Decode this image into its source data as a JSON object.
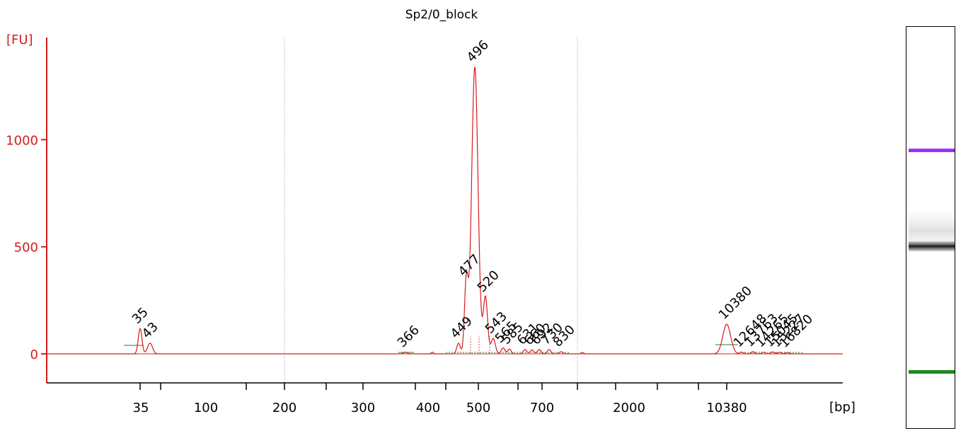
{
  "chart_data": {
    "type": "line",
    "title": "Sp2/0_block",
    "ylabel": "[FU]",
    "xlabel": "[bp]",
    "ylim": [
      -130,
      1480
    ],
    "y_ticks": [
      0,
      500,
      1000
    ],
    "y_tick_labels": [
      "0",
      "500",
      "1000"
    ],
    "x_ticks": [
      "35",
      "100",
      "200",
      "300",
      "400",
      "500",
      "700",
      "2000",
      "10380"
    ],
    "grid": false,
    "colors": {
      "trace": "#d81b1b",
      "axis": "#d81b1b",
      "lower_marker": "#1e8a1e",
      "upper_marker": "#9b30ff",
      "sample": "#000000",
      "reference_lines": "#7777aa"
    },
    "peaks": [
      {
        "label": "35",
        "fu": 118,
        "kind": "lower_marker"
      },
      {
        "label": "43",
        "fu": 50
      },
      {
        "label": "366",
        "fu": 8
      },
      {
        "label": "449",
        "fu": 50
      },
      {
        "label": "477",
        "fu": 340
      },
      {
        "label": "496",
        "fu": 1340
      },
      {
        "label": "520",
        "fu": 265
      },
      {
        "label": "543",
        "fu": 72
      },
      {
        "label": "565",
        "fu": 28
      },
      {
        "label": "585",
        "fu": 22
      },
      {
        "label": "631",
        "fu": 20
      },
      {
        "label": "660",
        "fu": 18
      },
      {
        "label": "692",
        "fu": 20
      },
      {
        "label": "730",
        "fu": 20
      },
      {
        "label": "830",
        "fu": 10
      },
      {
        "label": "10380",
        "fu": 138,
        "kind": "upper_marker"
      },
      {
        "label": "12648",
        "fu": 8
      },
      {
        "label": "13763",
        "fu": 10
      },
      {
        "label": "14265",
        "fu": 8
      },
      {
        "label": "15045",
        "fu": 9
      },
      {
        "label": "15227",
        "fu": 8
      },
      {
        "label": "16820",
        "fu": 6
      }
    ]
  }
}
